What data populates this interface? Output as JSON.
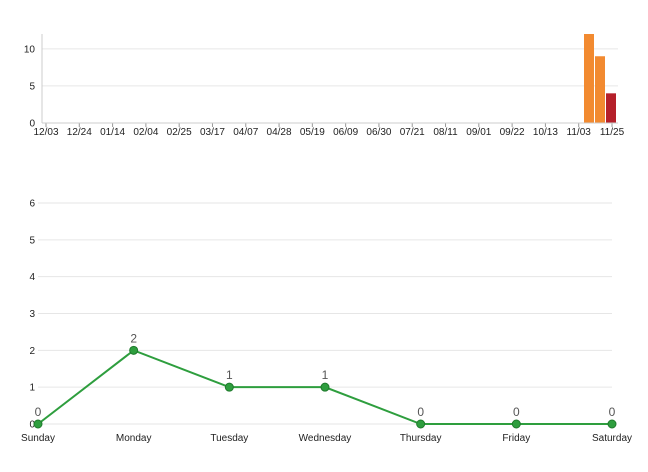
{
  "chart_data": [
    {
      "type": "bar",
      "x_ticks": [
        "12/03",
        "12/24",
        "01/14",
        "02/04",
        "02/25",
        "03/17",
        "04/07",
        "04/28",
        "05/19",
        "06/09",
        "06/30",
        "07/21",
        "08/11",
        "09/01",
        "09/22",
        "10/13",
        "11/03",
        "11/25"
      ],
      "y_ticks": [
        "0",
        "5",
        "10"
      ],
      "ylim": [
        0,
        12
      ],
      "bars": [
        {
          "slot": 0,
          "value": 12,
          "color": "#f28a30"
        },
        {
          "slot": 1,
          "value": 9,
          "color": "#f28a30"
        },
        {
          "slot": 2,
          "value": 4,
          "color": "#b5202a"
        }
      ],
      "grid": true
    },
    {
      "type": "line",
      "categories": [
        "Sunday",
        "Monday",
        "Tuesday",
        "Wednesday",
        "Thursday",
        "Friday",
        "Saturday"
      ],
      "values": [
        0,
        2,
        1,
        1,
        0,
        0,
        0
      ],
      "data_labels": [
        "0",
        "2",
        "1",
        "1",
        "0",
        "0",
        "0"
      ],
      "y_ticks": [
        "0",
        "1",
        "2",
        "3",
        "4",
        "5",
        "6"
      ],
      "ylim": [
        0,
        6
      ],
      "color": "#2e9e3e",
      "grid": true
    }
  ]
}
